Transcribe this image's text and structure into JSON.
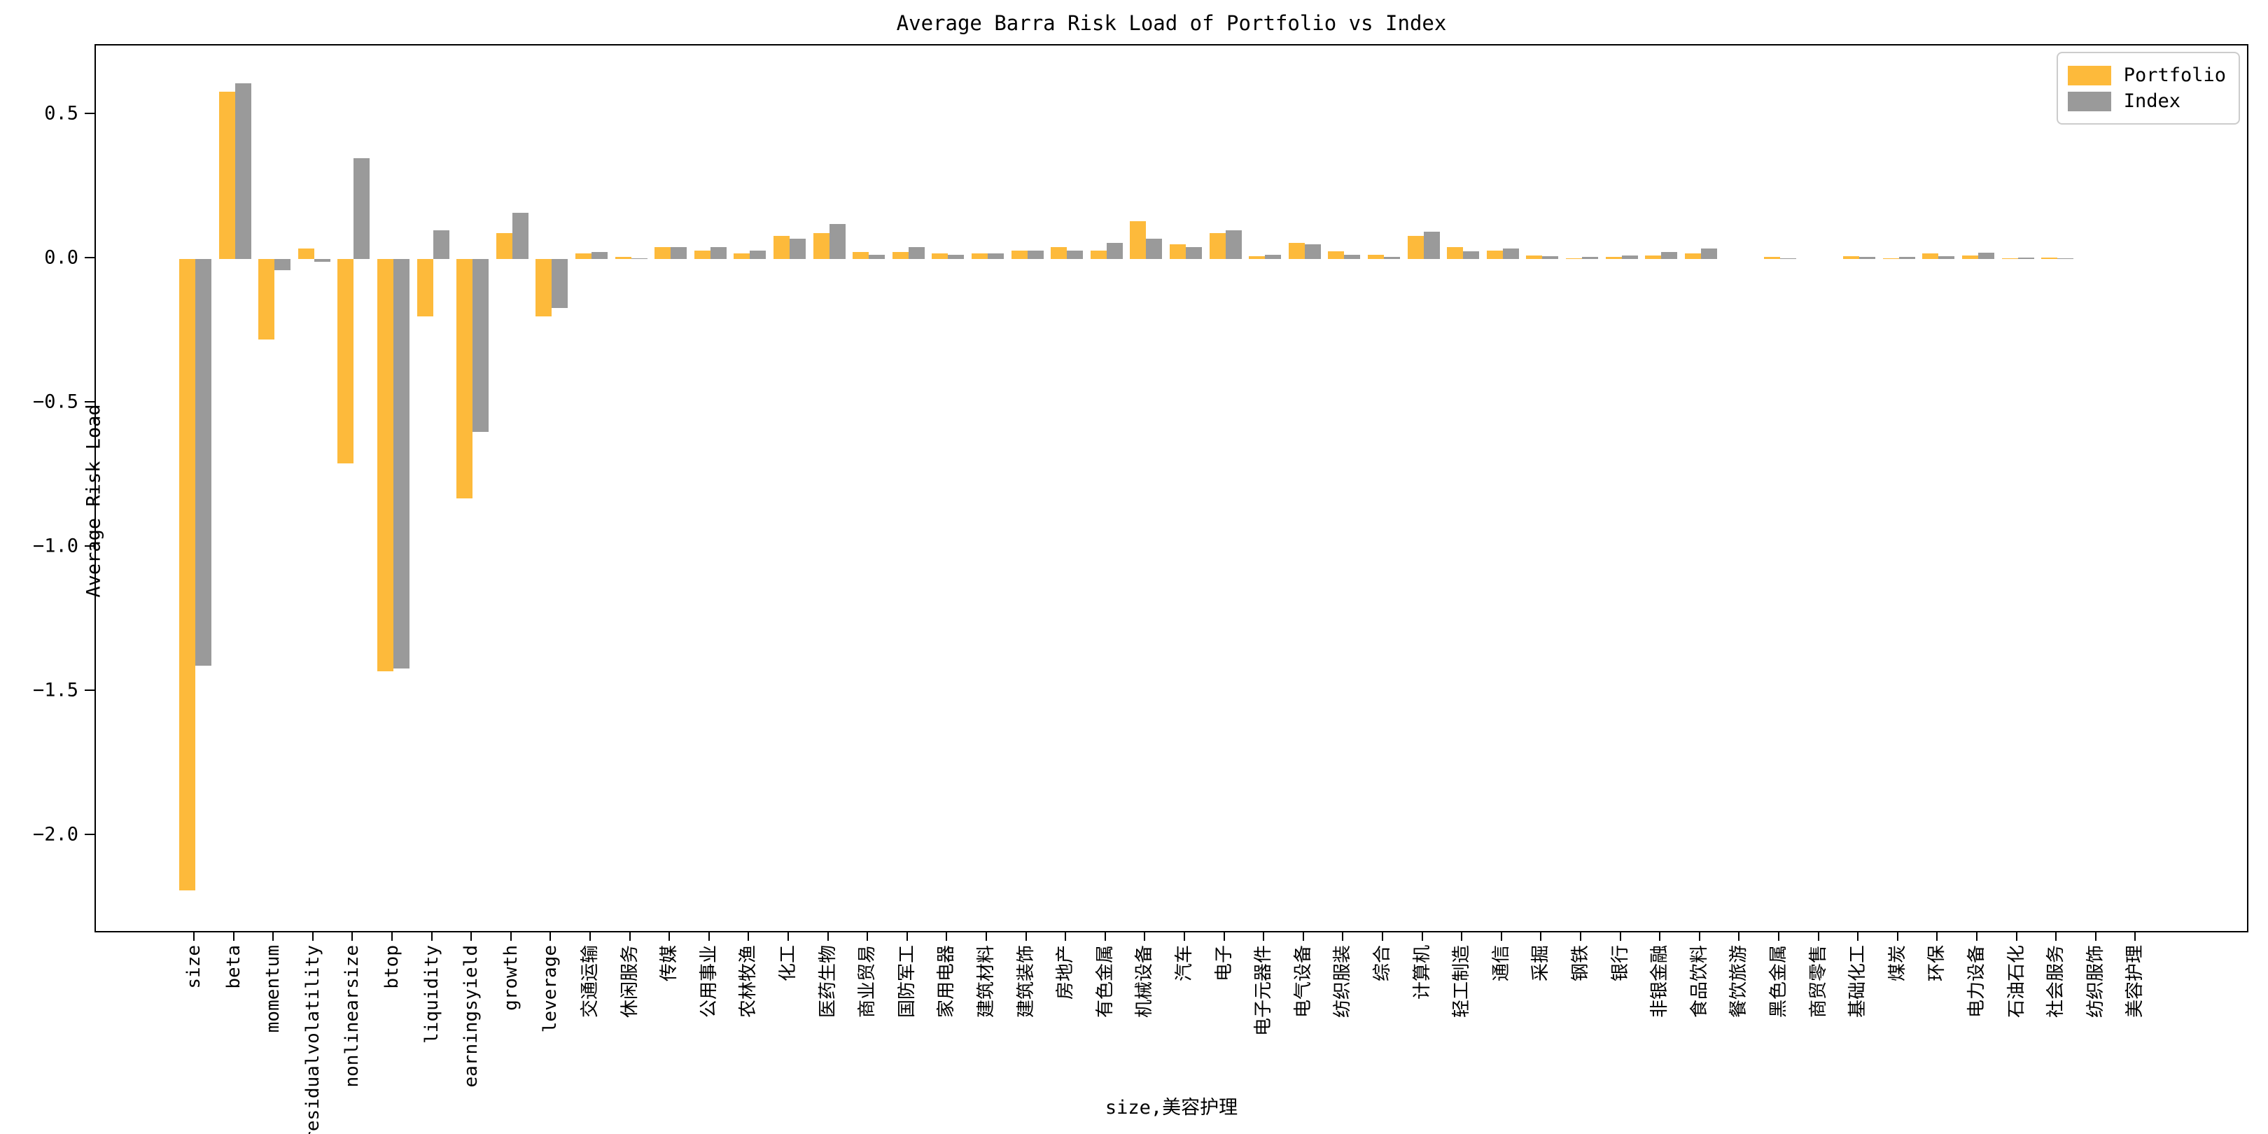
{
  "chart_data": {
    "type": "bar",
    "title": "Average Barra Risk Load of Portfolio vs Index",
    "xlabel": "size,美容护理",
    "ylabel": "Average Risk Load",
    "legend_position": "upper right",
    "grid": false,
    "ylim": [
      -2.34,
      0.74
    ],
    "yticks": {
      "values": [
        0.5,
        0.0,
        -0.5,
        -1.0,
        -1.5,
        -2.0
      ],
      "labels": [
        "0.5",
        "0.0",
        "−0.5",
        "−1.0",
        "−1.5",
        "−2.0"
      ]
    },
    "categories": [
      "size",
      "beta",
      "momentum",
      "residualvolatility",
      "nonlinearsize",
      "btop",
      "liquidity",
      "earningsyield",
      "growth",
      "leverage",
      "交通运输",
      "休闲服务",
      "传媒",
      "公用事业",
      "农林牧渔",
      "化工",
      "医药生物",
      "商业贸易",
      "国防军工",
      "家用电器",
      "建筑材料",
      "建筑装饰",
      "房地产",
      "有色金属",
      "机械设备",
      "汽车",
      "电子",
      "电子元器件",
      "电气设备",
      "纺织服装",
      "综合",
      "计算机",
      "轻工制造",
      "通信",
      "采掘",
      "钢铁",
      "银行",
      "非银金融",
      "食品饮料",
      "餐饮旅游",
      "黑色金属",
      "商贸零售",
      "基础化工",
      "煤炭",
      "环保",
      "电力设备",
      "石油石化",
      "社会服务",
      "纺织服饰",
      "美容护理"
    ],
    "series": [
      {
        "name": "Portfolio",
        "color": "#FDBA3B",
        "values": [
          -2.19,
          0.58,
          -0.28,
          0.035,
          -0.71,
          -1.43,
          -0.2,
          -0.83,
          0.09,
          -0.2,
          0.02,
          0.008,
          0.04,
          0.03,
          0.02,
          0.08,
          0.09,
          0.025,
          0.025,
          0.02,
          0.02,
          0.03,
          0.04,
          0.03,
          0.13,
          0.05,
          0.09,
          0.01,
          0.055,
          0.027,
          0.015,
          0.08,
          0.04,
          0.03,
          0.012,
          0.003,
          0.008,
          0.012,
          0.02,
          0.0,
          0.007,
          0.0,
          0.01,
          0.003,
          0.018,
          0.012,
          0.003,
          0.004,
          0.0,
          0.0
        ]
      },
      {
        "name": "Index",
        "color": "#9A9A9A",
        "values": [
          -1.41,
          0.61,
          -0.04,
          -0.01,
          0.35,
          -1.42,
          0.1,
          -0.6,
          0.16,
          -0.17,
          0.025,
          0.002,
          0.042,
          0.04,
          0.028,
          0.07,
          0.12,
          0.015,
          0.04,
          0.015,
          0.02,
          0.028,
          0.028,
          0.055,
          0.07,
          0.04,
          0.1,
          0.015,
          0.05,
          0.015,
          0.008,
          0.095,
          0.027,
          0.037,
          0.01,
          0.008,
          0.012,
          0.023,
          0.037,
          0.0,
          0.002,
          0.0,
          0.008,
          0.008,
          0.01,
          0.022,
          0.004,
          0.002,
          0.0,
          0.0
        ]
      }
    ]
  }
}
